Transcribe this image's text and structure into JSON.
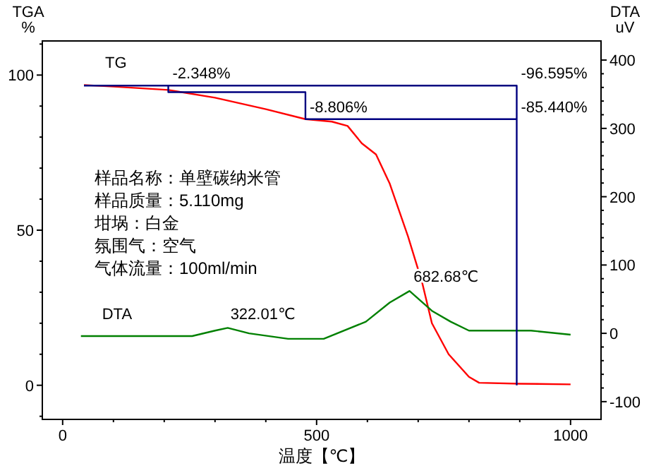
{
  "chart_data": {
    "type": "line",
    "xlabel": "温度【℃】",
    "ylabel": "TGA %",
    "y2label": "DTA uV",
    "xlim": [
      -40,
      1060
    ],
    "ylim": [
      -11,
      111
    ],
    "y2lim": [
      -126,
      428
    ],
    "xticks": [
      0,
      {
        "value": 100,
        "label": null
      },
      {
        "value": 200,
        "label": null
      },
      {
        "value": 300,
        "label": null
      },
      {
        "value": 400,
        "label": null
      },
      500,
      {
        "value": 600,
        "label": null
      },
      {
        "value": 700,
        "label": null
      },
      {
        "value": 800,
        "label": null
      },
      {
        "value": 900,
        "label": null
      },
      1000
    ],
    "yticks": [
      {
        "value": -10,
        "label": null
      },
      0,
      {
        "value": 10,
        "label": null
      },
      {
        "value": 20,
        "label": null
      },
      {
        "value": 30,
        "label": null
      },
      {
        "value": 40,
        "label": null
      },
      50,
      {
        "value": 60,
        "label": null
      },
      {
        "value": 70,
        "label": null
      },
      {
        "value": 80,
        "label": null
      },
      {
        "value": 90,
        "label": null
      },
      100,
      {
        "value": 110,
        "label": null
      }
    ],
    "y2ticks": [
      -100,
      {
        "value": -80,
        "label": null
      },
      {
        "value": -60,
        "label": null
      },
      {
        "value": -40,
        "label": null
      },
      {
        "value": -20,
        "label": null
      },
      0,
      {
        "value": 20,
        "label": null
      },
      {
        "value": 40,
        "label": null
      },
      {
        "value": 60,
        "label": null
      },
      {
        "value": 80,
        "label": null
      },
      100,
      {
        "value": 120,
        "label": null
      },
      {
        "value": 140,
        "label": null
      },
      {
        "value": 160,
        "label": null
      },
      {
        "value": 180,
        "label": null
      },
      200,
      {
        "value": 220,
        "label": null
      },
      {
        "value": 240,
        "label": null
      },
      {
        "value": 260,
        "label": null
      },
      {
        "value": 280,
        "label": null
      },
      300,
      {
        "value": 320,
        "label": null
      },
      {
        "value": 340,
        "label": null
      },
      {
        "value": 360,
        "label": null
      },
      {
        "value": 380,
        "label": null
      },
      400
    ],
    "grid": false,
    "series": [
      {
        "name": "TG",
        "color": "#ff0000",
        "x": [
          42,
          100,
          208,
          300,
          400,
          478,
          530,
          561,
          589,
          617,
          644,
          680,
          708,
          727,
          760,
          800,
          820,
          900,
          1000
        ],
        "values": [
          96.8,
          96.3,
          95.2,
          92.7,
          89,
          85.8,
          85,
          83.6,
          78,
          74.4,
          65,
          48,
          33,
          20,
          10,
          2.7,
          0.8,
          0.5,
          0.3
        ]
      },
      {
        "name": "DTA",
        "color": "#008000",
        "axis": "y2",
        "x": [
          36,
          150,
          255,
          300,
          325,
          367,
          444,
          514,
          597,
          644,
          683,
          727,
          764,
          800,
          922,
          1000
        ],
        "values": [
          -4,
          -4,
          -4,
          4,
          8,
          0,
          -8,
          -8,
          17,
          45,
          62,
          33,
          17,
          4,
          4,
          -2
        ]
      },
      {
        "color": "#000080",
        "x": [
          42,
          894,
          894
        ],
        "values": [
          96.6,
          96.6,
          0
        ]
      },
      {
        "color": "#000080",
        "x": [
          208,
          208,
          478,
          478,
          894
        ],
        "values": [
          96.6,
          94.5,
          94.5,
          85.8,
          85.8
        ]
      }
    ],
    "annotations": [
      "样品名称：单壁碳纳米管",
      "样品质量：5.110mg",
      "坩埚：白金",
      "氛围气：空气",
      "气体流量：100ml/min",
      {
        "text": "-2.348%",
        "x": 208,
        "y": 96.6
      },
      {
        "text": "-8.806%",
        "x": 478,
        "y": 85.8
      },
      {
        "text": "-96.595%",
        "x": 894,
        "y": 96.6
      },
      {
        "text": "-85.440%",
        "x": 894,
        "y": 85.8
      },
      {
        "text": "322.01℃",
        "x": 322.01,
        "y": 19
      },
      {
        "text": "682.68℃",
        "x": 682.68,
        "y": 31
      }
    ]
  }
}
